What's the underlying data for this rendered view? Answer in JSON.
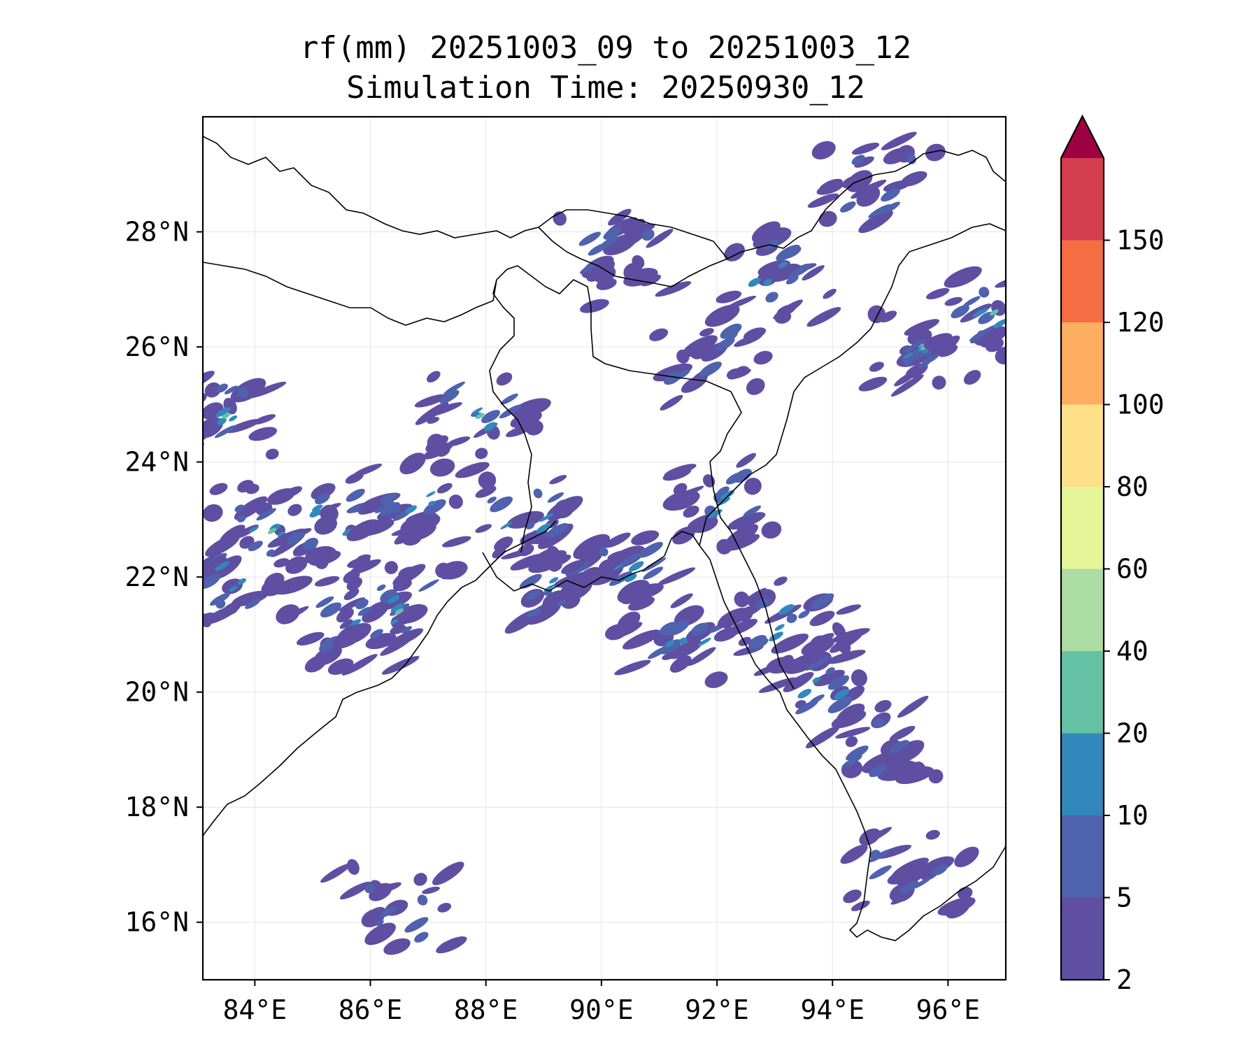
{
  "title": {
    "line1": "rf(mm) 20251003_09 to 20251003_12",
    "line2": "Simulation Time: 20250930_12"
  },
  "map": {
    "lon_range": [
      83.1,
      97.0
    ],
    "lat_range": [
      15.0,
      30.0
    ],
    "lon_ticks": [
      84,
      86,
      88,
      90,
      92,
      94,
      96
    ],
    "lat_ticks": [
      16,
      18,
      20,
      22,
      24,
      26,
      28
    ],
    "lon_tick_labels": [
      "84°E",
      "86°E",
      "88°E",
      "90°E",
      "92°E",
      "94°E",
      "96°E"
    ],
    "lat_tick_labels": [
      "16°N",
      "18°N",
      "20°N",
      "22°N",
      "24°N",
      "26°N",
      "28°N"
    ],
    "gridlines": true
  },
  "colorbar": {
    "levels": [
      2,
      5,
      10,
      20,
      40,
      60,
      80,
      100,
      120,
      150
    ],
    "labels": [
      "2",
      "5",
      "10",
      "20",
      "40",
      "60",
      "80",
      "100",
      "120",
      "150"
    ],
    "colors": [
      "#5e4fa2",
      "#4e62ae",
      "#3288bd",
      "#66c2a5",
      "#abdda4",
      "#e6f598",
      "#fee08b",
      "#fdae61",
      "#f46d43",
      "#d53e4f"
    ],
    "extend_color": "#9e0142",
    "extend": "max"
  },
  "chart_data": {
    "type": "heatmap",
    "variable": "rf(mm)",
    "title": "rf(mm) 20251003_09 to 20251003_12",
    "subtitle": "Simulation Time: 20250930_12",
    "xlabel": "",
    "ylabel": "",
    "xlim": [
      83.1,
      97.0
    ],
    "ylim": [
      15.0,
      30.0
    ],
    "rain_cells": [
      {
        "lon": 83.5,
        "lat": 24.8,
        "value": 20
      },
      {
        "lon": 83.6,
        "lat": 22.0,
        "value": 10
      },
      {
        "lon": 84.3,
        "lat": 22.8,
        "value": 20
      },
      {
        "lon": 85.6,
        "lat": 21.2,
        "value": 20
      },
      {
        "lon": 86.5,
        "lat": 21.4,
        "value": 20
      },
      {
        "lon": 85.3,
        "lat": 23.0,
        "value": 10
      },
      {
        "lon": 86.8,
        "lat": 23.4,
        "value": 10
      },
      {
        "lon": 87.9,
        "lat": 24.8,
        "value": 20
      },
      {
        "lon": 88.7,
        "lat": 23.0,
        "value": 10
      },
      {
        "lon": 89.3,
        "lat": 21.8,
        "value": 10
      },
      {
        "lon": 90.4,
        "lat": 22.0,
        "value": 10
      },
      {
        "lon": 91.5,
        "lat": 21.0,
        "value": 10
      },
      {
        "lon": 92.3,
        "lat": 23.3,
        "value": 10
      },
      {
        "lon": 93.3,
        "lat": 21.2,
        "value": 10
      },
      {
        "lon": 93.8,
        "lat": 20.2,
        "value": 10
      },
      {
        "lon": 93.0,
        "lat": 27.3,
        "value": 10
      },
      {
        "lon": 94.8,
        "lat": 28.8,
        "value": 5
      },
      {
        "lon": 95.6,
        "lat": 26.0,
        "value": 20
      },
      {
        "lon": 96.8,
        "lat": 26.6,
        "value": 20
      },
      {
        "lon": 90.3,
        "lat": 27.5,
        "value": 5
      },
      {
        "lon": 91.8,
        "lat": 25.8,
        "value": 5
      },
      {
        "lon": 95.3,
        "lat": 16.8,
        "value": 5
      },
      {
        "lon": 86.4,
        "lat": 16.2,
        "value": 5
      },
      {
        "lon": 94.8,
        "lat": 19.0,
        "value": 5
      }
    ]
  }
}
